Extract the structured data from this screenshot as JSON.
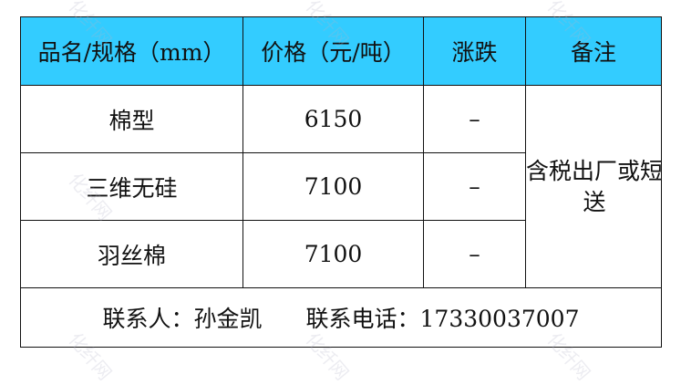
{
  "headers": [
    "品名/规格（mm）",
    "价格（元/吨）",
    "涨跌",
    "备注"
  ],
  "rows": [
    {
      "name": "棉型",
      "price": "6150",
      "change": "–"
    },
    {
      "name": "三维无硅",
      "price": "7100",
      "change": "–"
    },
    {
      "name": "羽丝棉",
      "price": "7100",
      "change": "–"
    }
  ],
  "remark": "含税出厂或短送",
  "footer": {
    "contact": "联系人：孙金凯",
    "phone": "联系电话：17330037007"
  },
  "watermark": "化纤网",
  "colors": {
    "header_bg": "#33ccff"
  }
}
